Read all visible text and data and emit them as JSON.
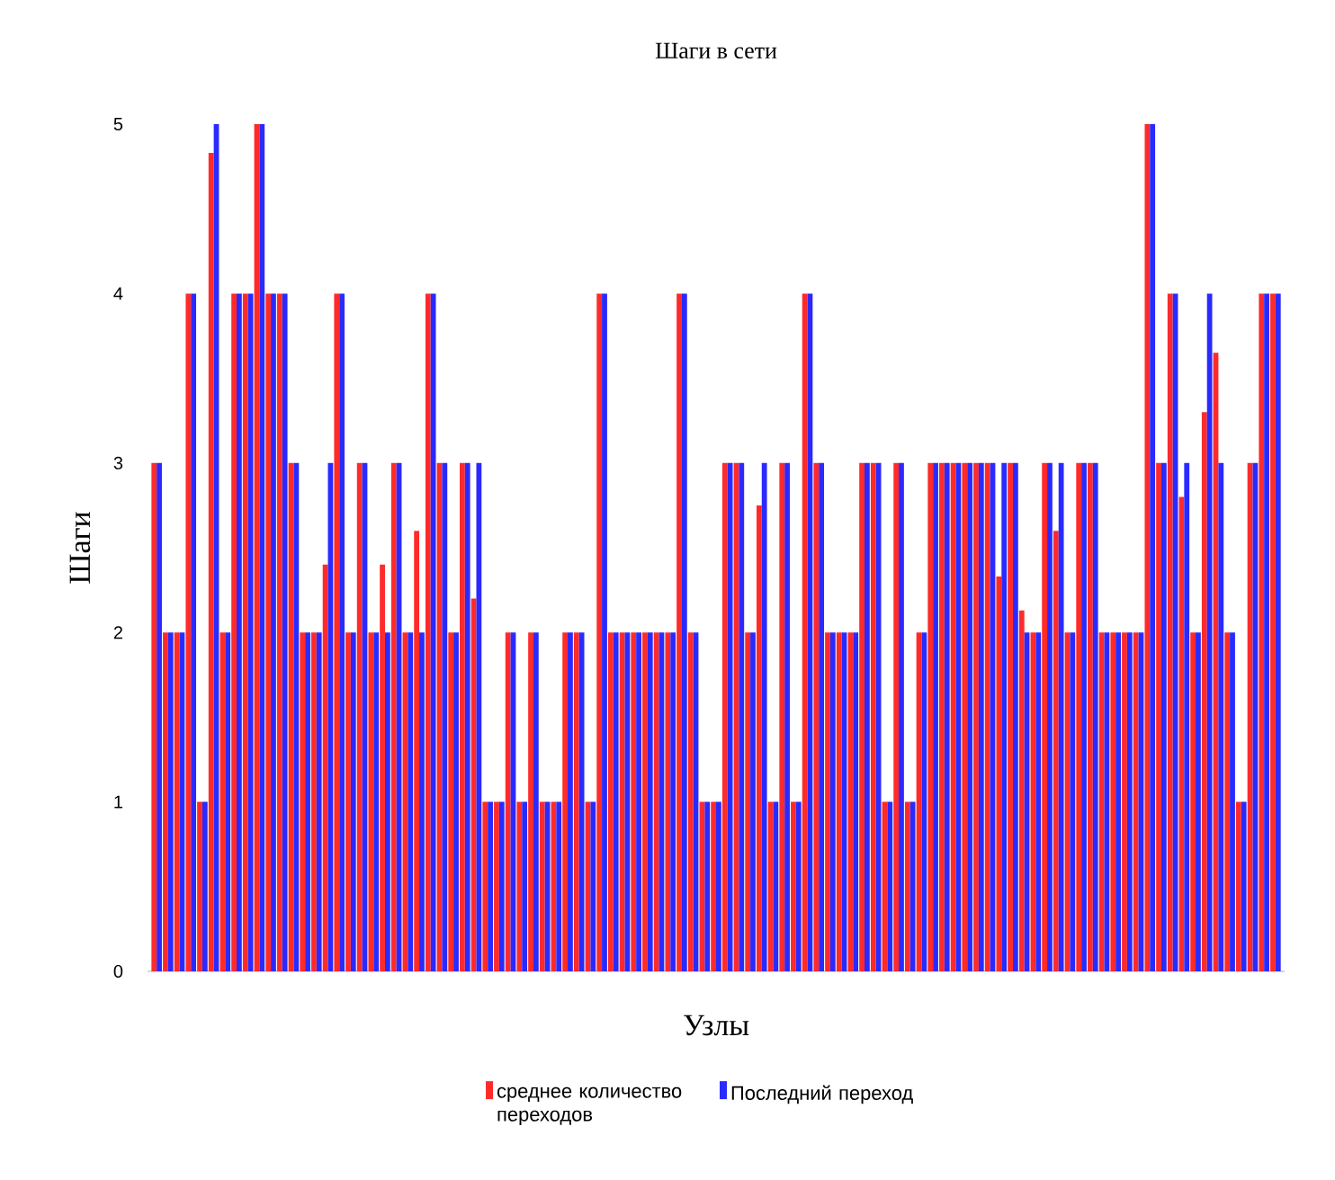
{
  "chart_data": {
    "type": "bar",
    "title": "Шаги в сети",
    "xlabel": "Узлы",
    "ylabel": "Шаги",
    "categories": [
      null,
      null,
      null,
      null,
      null,
      null,
      null,
      null,
      null,
      null,
      null,
      null,
      null,
      null,
      null,
      null,
      null,
      null,
      null,
      null,
      null,
      null,
      null,
      null,
      null,
      null,
      null,
      null,
      null,
      null,
      null,
      null,
      null,
      null,
      null,
      null,
      null,
      null,
      null,
      null,
      null,
      null,
      null,
      null,
      null,
      null,
      null,
      null,
      null,
      null,
      null,
      null,
      null,
      null,
      null,
      null,
      null,
      null,
      null,
      null,
      null,
      null,
      null,
      null,
      null,
      null,
      null,
      null,
      null,
      null,
      null,
      null,
      null,
      null,
      null,
      null,
      null,
      null,
      null,
      null,
      null,
      null,
      null,
      null,
      null,
      null,
      null,
      null,
      null,
      null,
      null,
      null,
      null,
      null,
      null,
      null,
      null,
      null,
      null
    ],
    "series": [
      {
        "name": "среднее количество переходов",
        "color": "#ff2a2a",
        "values": [
          3,
          2,
          2,
          4,
          1,
          4.83,
          2,
          4,
          4,
          5,
          4,
          4,
          3,
          2,
          2,
          2.4,
          4,
          2,
          3,
          2,
          2.4,
          3,
          2,
          2.6,
          4,
          3,
          2,
          3,
          2.2,
          1,
          1,
          2,
          1,
          2,
          1,
          1,
          2,
          2,
          1,
          4,
          2,
          2,
          2,
          2,
          2,
          2,
          4,
          2,
          1,
          1,
          3,
          3,
          2,
          2.75,
          1,
          3,
          1,
          4,
          3,
          2,
          2,
          2,
          3,
          3,
          1,
          3,
          1,
          2,
          3,
          3,
          3,
          3,
          3,
          3,
          2.33,
          3,
          2.13,
          2,
          3,
          2.6,
          2,
          3,
          3,
          2,
          2,
          2,
          2,
          5,
          3,
          4,
          2.8,
          2,
          3.3,
          3.65,
          2,
          1,
          3,
          4,
          4
        ]
      },
      {
        "name": "Последний переход",
        "color": "#2a2aff",
        "values": [
          3,
          2,
          2,
          4,
          1,
          5,
          2,
          4,
          4,
          5,
          4,
          4,
          3,
          2,
          2,
          3,
          4,
          2,
          3,
          2,
          2,
          3,
          2,
          2,
          4,
          3,
          2,
          3,
          3,
          1,
          1,
          2,
          1,
          2,
          1,
          1,
          2,
          2,
          1,
          4,
          2,
          2,
          2,
          2,
          2,
          2,
          4,
          2,
          1,
          1,
          3,
          3,
          2,
          3,
          1,
          3,
          1,
          4,
          3,
          2,
          2,
          2,
          3,
          3,
          1,
          3,
          1,
          2,
          3,
          3,
          3,
          3,
          3,
          3,
          3,
          3,
          2,
          2,
          3,
          3,
          2,
          3,
          3,
          2,
          2,
          2,
          2,
          5,
          3,
          4,
          3,
          2,
          4,
          3,
          2,
          1,
          3,
          4,
          4
        ]
      }
    ],
    "ylim": [
      0,
      5
    ],
    "yticks": [
      0,
      1,
      2,
      3,
      4,
      5
    ],
    "tick_labels": "y",
    "legend": "bottom"
  }
}
